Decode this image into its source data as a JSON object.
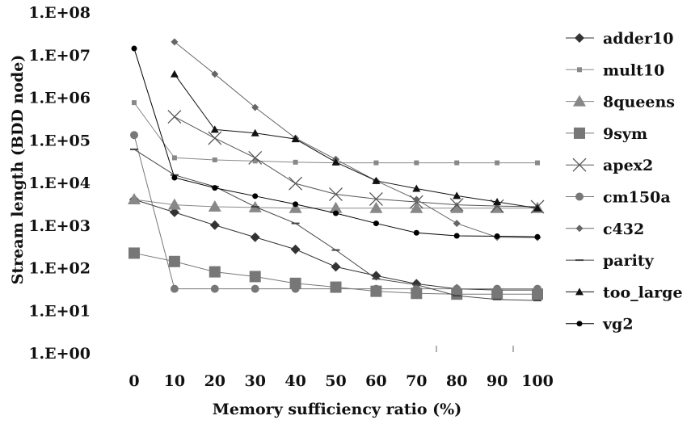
{
  "chart_data": {
    "type": "line",
    "xlabel": "Memory sufficiency ratio (%)",
    "ylabel": "Stream length (BDD node)",
    "yscale": "log",
    "ylim": [
      1,
      100000000
    ],
    "x": [
      0,
      10,
      20,
      30,
      40,
      50,
      60,
      70,
      80,
      90,
      100
    ],
    "x_tick_labels": [
      "0",
      "10",
      "20",
      "30",
      "40",
      "50",
      "60",
      "70",
      "80",
      "90",
      "100"
    ],
    "y_tick_labels": [
      "1.E+00",
      "1.E+01",
      "1.E+02",
      "1.E+03",
      "1.E+04",
      "1.E+05",
      "1.E+06",
      "1.E+07",
      "1.E+08"
    ],
    "legend_position": "right",
    "series": [
      {
        "name": "adder10",
        "marker": "diamond",
        "color": "#333333",
        "values": [
          4000,
          2000,
          1000,
          520,
          270,
          105,
          65,
          42,
          32,
          30,
          30
        ]
      },
      {
        "name": "mult10",
        "marker": "small-square",
        "color": "#888888",
        "values": [
          750000,
          38000,
          34000,
          32000,
          30000,
          29000,
          29000,
          29000,
          29000,
          29000,
          29000
        ]
      },
      {
        "name": "8queens",
        "marker": "triangle-big",
        "color": "#888888",
        "values": [
          4000,
          3000,
          2700,
          2600,
          2500,
          2500,
          2500,
          2500,
          2500,
          2500,
          2500
        ]
      },
      {
        "name": "9sym",
        "marker": "square",
        "color": "#777777",
        "values": [
          220,
          140,
          80,
          62,
          43,
          35,
          28,
          25,
          24,
          24,
          24
        ]
      },
      {
        "name": "apex2",
        "marker": "x",
        "color": "#555555",
        "values": [
          null,
          350000,
          110000,
          38000,
          9500,
          5300,
          4100,
          3500,
          3000,
          2800,
          2700
        ]
      },
      {
        "name": "cm150a",
        "marker": "circle",
        "color": "#777777",
        "values": [
          130000,
          32,
          32,
          32,
          32,
          32,
          32,
          32,
          32,
          32,
          32
        ]
      },
      {
        "name": "c432",
        "marker": "diamond-small",
        "color": "#666666",
        "values": [
          null,
          20000000,
          3500000,
          580000,
          110000,
          35000,
          11000,
          4000,
          1100,
          520,
          510
        ]
      },
      {
        "name": "parity",
        "marker": "dash",
        "color": "#444444",
        "values": [
          60000,
          15000,
          8000,
          2700,
          1100,
          260,
          55,
          40,
          22,
          18,
          17
        ]
      },
      {
        "name": "too_large",
        "marker": "triangle",
        "color": "#111111",
        "values": [
          null,
          3500000,
          175000,
          145000,
          105000,
          30000,
          11000,
          7200,
          4900,
          3500,
          2500
        ]
      },
      {
        "name": "vg2",
        "marker": "dot",
        "color": "#000000",
        "values": [
          14000000,
          13000,
          7500,
          4800,
          3100,
          1900,
          1100,
          660,
          560,
          550,
          530
        ]
      }
    ]
  }
}
